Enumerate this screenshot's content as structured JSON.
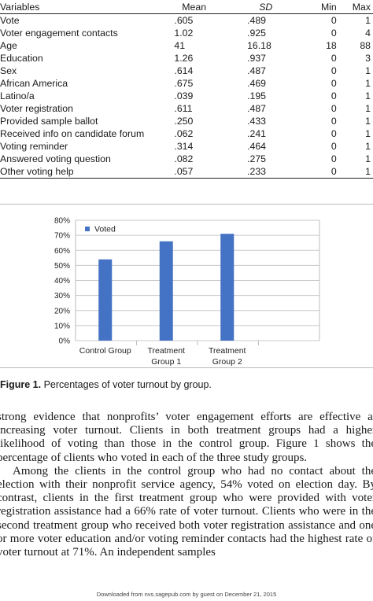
{
  "table": {
    "headers": {
      "variables": "Variables",
      "mean": "Mean",
      "sd": "SD",
      "min": "Min",
      "max": "Max"
    },
    "rows": [
      {
        "variable": "Vote",
        "mean": ".605",
        "sd": ".489",
        "min": "0",
        "max": "1"
      },
      {
        "variable": "Voter engagement contacts",
        "mean": "1.02",
        "sd": ".925",
        "min": "0",
        "max": "4"
      },
      {
        "variable": "Age",
        "mean": "41",
        "sd": "16.18",
        "min": "18",
        "max": "88"
      },
      {
        "variable": "Education",
        "mean": "1.26",
        "sd": ".937",
        "min": "0",
        "max": "3"
      },
      {
        "variable": "Sex",
        "mean": ".614",
        "sd": ".487",
        "min": "0",
        "max": "1"
      },
      {
        "variable": "African America",
        "mean": ".675",
        "sd": ".469",
        "min": "0",
        "max": "1"
      },
      {
        "variable": "Latino/a",
        "mean": ".039",
        "sd": ".195",
        "min": "0",
        "max": "1"
      },
      {
        "variable": "Voter registration",
        "mean": ".611",
        "sd": ".487",
        "min": "0",
        "max": "1"
      },
      {
        "variable": "Provided sample ballot",
        "mean": ".250",
        "sd": ".433",
        "min": "0",
        "max": "1"
      },
      {
        "variable": "Received info on candidate forum",
        "mean": ".062",
        "sd": ".241",
        "min": "0",
        "max": "1"
      },
      {
        "variable": "Voting reminder",
        "mean": ".314",
        "sd": ".464",
        "min": "0",
        "max": "1"
      },
      {
        "variable": "Answered voting question",
        "mean": ".082",
        "sd": ".275",
        "min": "0",
        "max": "1"
      },
      {
        "variable": "Other voting help",
        "mean": ".057",
        "sd": ".233",
        "min": "0",
        "max": "1"
      }
    ]
  },
  "chart_data": {
    "type": "bar",
    "categories": [
      [
        "Control Group"
      ],
      [
        "Treatment",
        "Group 1"
      ],
      [
        "Treatment",
        "Group 2"
      ],
      [
        ""
      ]
    ],
    "series": [
      {
        "name": "Voted",
        "values": [
          54,
          66,
          71,
          null
        ],
        "color": "#4472c4"
      }
    ],
    "yticks": [
      "0%",
      "10%",
      "20%",
      "30%",
      "40%",
      "50%",
      "60%",
      "70%",
      "80%"
    ],
    "ylim": [
      0,
      80
    ],
    "grid": true,
    "legend_position": "top-left",
    "title": "",
    "xlabel": "",
    "ylabel": ""
  },
  "figure": {
    "caption_label": "Figure 1.",
    "caption_text": "Percentages of voter turnout by group."
  },
  "body": {
    "p1": "strong evidence that nonprofits’ voter engagement efforts are effective at increasing voter turnout. Clients in both treatment groups had a higher likelihood of voting than those in the control group. Figure 1 shows the percentage of clients who voted in each of the three study groups.",
    "p2": "Among the clients in the control group who had no contact about the election with their nonprofit service agency, 54% voted on election day. By contrast, clients in the first treatment group who were provided with voter registration assistance had a 66% rate of voter turnout. Clients who were in the second treatment group who received both voter registration assistance and one or more voter education and/or voting reminder contacts had the highest rate of voter turnout at 71%. An independent samples"
  },
  "footer": {
    "text": "Downloaded from nvs.sagepub.com by guest on December 21, 2015"
  }
}
